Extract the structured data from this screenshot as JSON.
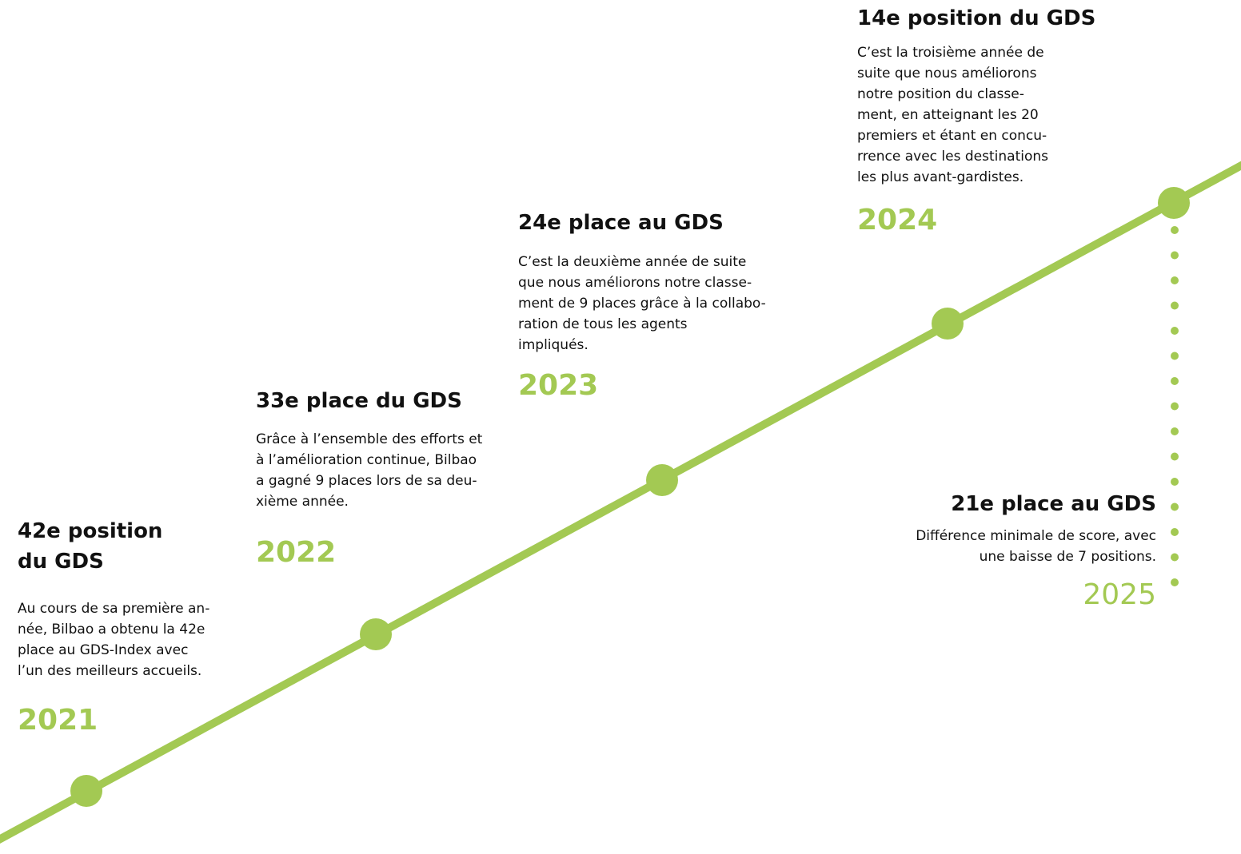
{
  "milestones": [
    {
      "title": [
        "42e position",
        "du GDS"
      ],
      "text": [
        "Au cours de sa première an-",
        "née, Bilbao a obtenu la 42e",
        "place au GDS-Index avec",
        "l’un des meilleurs accueils."
      ],
      "year": "2021"
    },
    {
      "title": [
        "33e place du GDS"
      ],
      "text": [
        "Grâce à l’ensemble des efforts et",
        "à l’amélioration continue, Bilbao",
        "a gagné 9 places lors de sa deu-",
        "xième année."
      ],
      "year": "2022"
    },
    {
      "title": [
        "24e place au GDS"
      ],
      "text": [
        "C’est la deuxième année de suite",
        "que nous améliorons notre classe-",
        "ment de 9 places grâce à la collabo-",
        "ration de tous les agents",
        "impliqués."
      ],
      "year": "2023"
    },
    {
      "title": [
        "14e position du GDS"
      ],
      "text": [
        "C’est la troisième année de",
        "suite que nous améliorons",
        "notre position du classe-",
        "ment, en atteignant les 20",
        "premiers et étant en concu-",
        "rrence avec les destinations",
        "les plus avant-gardistes."
      ],
      "year": "2024"
    },
    {
      "title": [
        "21e place au GDS"
      ],
      "text": [
        "Différence minimale de score, avec",
        "une baisse de 7 positions."
      ],
      "year": "2025"
    }
  ]
}
